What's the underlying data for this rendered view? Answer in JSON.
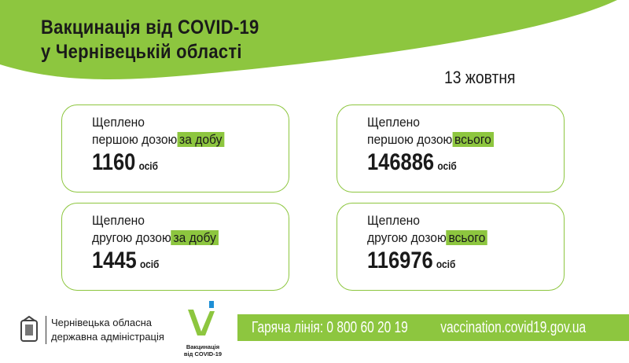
{
  "header": {
    "title_line1": "Вакцинація від COVID-19",
    "title_line2": "у Чернівецькій  області",
    "date": "13 жовтня"
  },
  "cards": [
    {
      "line1": "Щеплено",
      "line2": "першою дозою",
      "highlight": "за добу",
      "value": "1160",
      "unit": "осіб"
    },
    {
      "line1": "Щеплено",
      "line2": "першою дозою",
      "highlight": "всього",
      "value": "146886",
      "unit": "осіб"
    },
    {
      "line1": "Щеплено",
      "line2": "другою дозою",
      "highlight": "за добу",
      "value": "1445",
      "unit": "осіб"
    },
    {
      "line1": "Щеплено",
      "line2": "другою дозою",
      "highlight": "всього",
      "value": "116976",
      "unit": "осіб"
    }
  ],
  "footer": {
    "org_line1": "Чернівецька обласна",
    "org_line2": "державна адміністрація",
    "logo_caption1": "Вакцинація",
    "logo_caption2": "від COVID-19",
    "hotline": "Гаряча лінія: 0 800 60 20 19",
    "website": "vaccination.covid19.gov.ua"
  },
  "colors": {
    "accent": "#8dc63f",
    "logo_blue": "#1e8fd6"
  }
}
